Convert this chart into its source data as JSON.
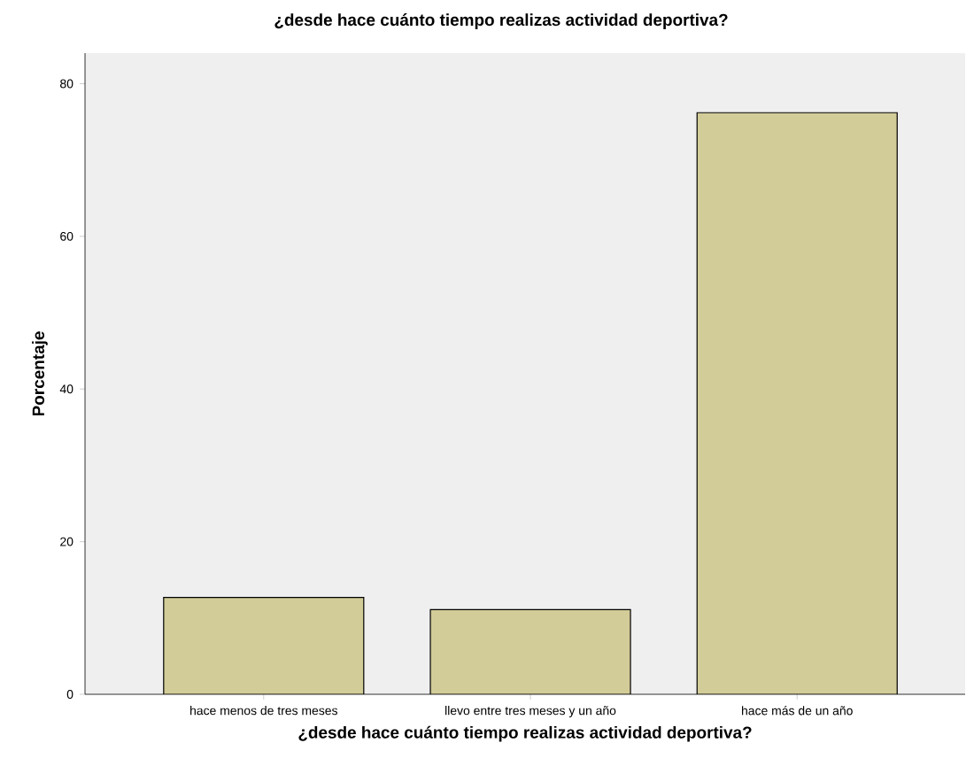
{
  "chart_data": {
    "type": "bar",
    "title": "¿desde hace cuánto tiempo realizas actividad deportiva?",
    "xlabel": "¿desde hace cuánto tiempo realizas actividad deportiva?",
    "ylabel": "Porcentaje",
    "categories": [
      "hace menos de tres meses",
      "llevo entre tres meses y un año",
      "hace más de un año"
    ],
    "values": [
      12.7,
      11.1,
      76.2
    ],
    "color": "#d2cc98",
    "ylim": [
      0,
      84
    ],
    "yticks": [
      0,
      20,
      40,
      60,
      80
    ],
    "grid": false
  }
}
